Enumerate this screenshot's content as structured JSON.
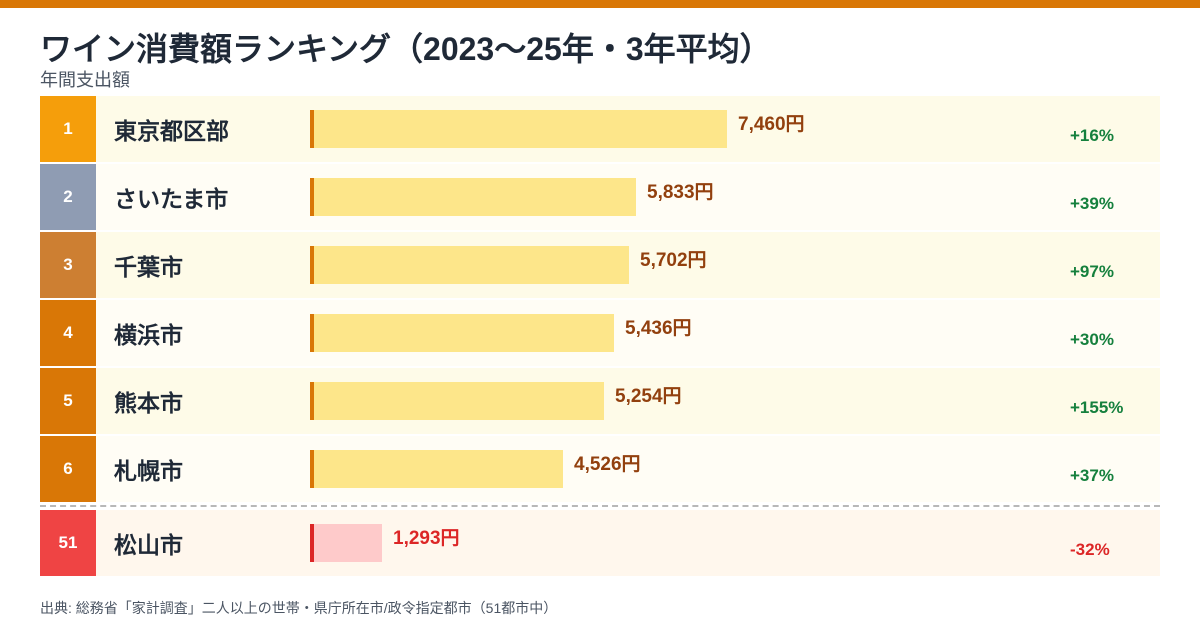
{
  "header": {
    "title": "ワイン消費額ランキング（2023〜25年・3年平均）",
    "subtitle": "年間支出額"
  },
  "colors": {
    "accent": "#d97706",
    "rank_gold": "#f59e0b",
    "rank_silver": "#8f9cb3",
    "rank_bronze": "#cd7f32",
    "rank_default": "#d97706",
    "rank_highlight": "#ef4444",
    "bar_fill": "#fde68a",
    "bar_highlight_fill": "#fecaca",
    "value_text": "#92400e",
    "value_highlight_text": "#dc2626",
    "positive_change": "#15803d",
    "negative_change": "#dc2626"
  },
  "chart_data": {
    "type": "bar",
    "title": "ワイン消費額ランキング（2023〜25年・3年平均）",
    "subtitle": "年間支出額",
    "orientation": "horizontal",
    "value_unit": "円",
    "xlim": [
      0,
      7460
    ],
    "rows": [
      {
        "rank": "1",
        "city": "東京都区部",
        "value": 7460,
        "value_label": "7,460円",
        "change": "+16%",
        "style": "gold"
      },
      {
        "rank": "2",
        "city": "さいたま市",
        "value": 5833,
        "value_label": "5,833円",
        "change": "+39%",
        "style": "silver"
      },
      {
        "rank": "3",
        "city": "千葉市",
        "value": 5702,
        "value_label": "5,702円",
        "change": "+97%",
        "style": "bronze"
      },
      {
        "rank": "4",
        "city": "横浜市",
        "value": 5436,
        "value_label": "5,436円",
        "change": "+30%",
        "style": "default"
      },
      {
        "rank": "5",
        "city": "熊本市",
        "value": 5254,
        "value_label": "5,254円",
        "change": "+155%",
        "style": "default"
      },
      {
        "rank": "6",
        "city": "札幌市",
        "value": 4526,
        "value_label": "4,526円",
        "change": "+37%",
        "style": "default"
      },
      {
        "rank": "51",
        "city": "松山市",
        "value": 1293,
        "value_label": "1,293円",
        "change": "-32%",
        "style": "highlight"
      }
    ]
  },
  "source": "出典: 総務省「家計調査」二人以上の世帯・県庁所在市/政令指定都市（51都市中）"
}
